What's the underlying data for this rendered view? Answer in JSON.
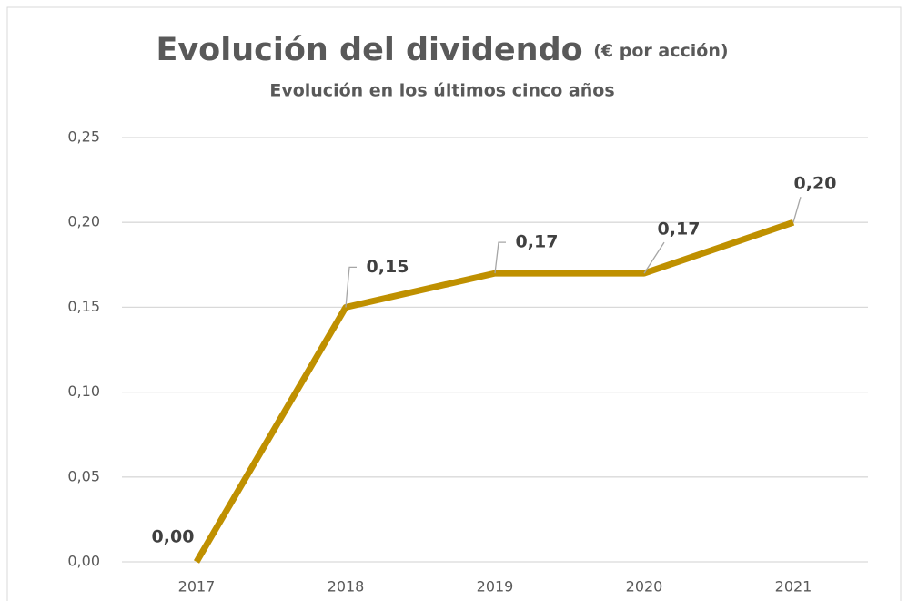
{
  "chart_data": {
    "type": "line",
    "title": "Evolución del dividendo",
    "title_unit": "(€ por acción)",
    "subtitle": "Evolución en los últimos cinco años",
    "categories": [
      "2017",
      "2018",
      "2019",
      "2020",
      "2021"
    ],
    "values": [
      0,
      0.15,
      0.17,
      0.17,
      0.2
    ],
    "value_labels": [
      "0,00",
      "0,15",
      "0,17",
      "0,17",
      "0,20"
    ],
    "color": "#bf9000",
    "ylim": [
      0,
      0.25
    ],
    "yticks": [
      {
        "value": 0,
        "label": "0,00"
      },
      {
        "value": 0.05,
        "label": "0,05"
      },
      {
        "value": 0.1,
        "label": "0,10"
      },
      {
        "value": 0.15,
        "label": "0,15"
      },
      {
        "value": 0.2,
        "label": "0,20"
      },
      {
        "value": 0.25,
        "label": "0,25"
      }
    ],
    "grid": true
  }
}
